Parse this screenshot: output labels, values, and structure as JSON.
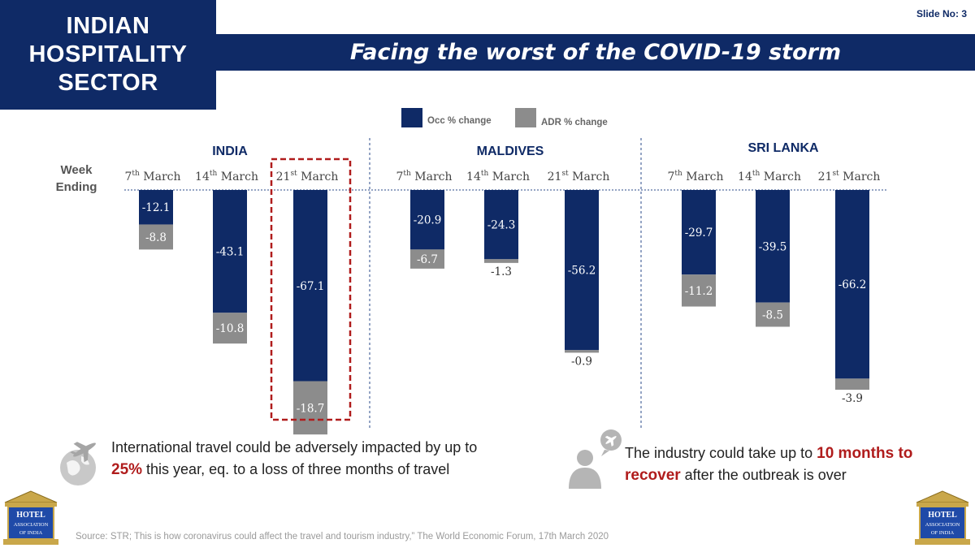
{
  "header": {
    "sector_title": "INDIAN\nHOSPITALITY\nSECTOR",
    "slide_number": "Slide No: 3",
    "main_title": "Facing the worst of the COVID-19 storm"
  },
  "colors": {
    "navy": "#0f2a66",
    "gray": "#8c8c8c",
    "highlight_red": "#b01c1c"
  },
  "chart_data": {
    "type": "bar",
    "stacked": true,
    "orientation": "downward",
    "row_label": "Week Ending",
    "legend": {
      "placement": "top-center",
      "items": [
        {
          "name": "Occ % change",
          "color": "#0f2a66"
        },
        {
          "name": "ADR % change",
          "color": "#8c8c8c"
        }
      ]
    },
    "highlight": {
      "group": "INDIA",
      "week": "21st March"
    },
    "groups": [
      {
        "name": "INDIA",
        "weeks": [
          {
            "day": "7",
            "sup": "th",
            "month": "March",
            "occ": -12.1,
            "adr": -8.8
          },
          {
            "day": "14",
            "sup": "th",
            "month": "March",
            "occ": -43.1,
            "adr": -10.8
          },
          {
            "day": "21",
            "sup": "st",
            "month": "March",
            "occ": -67.1,
            "adr": -18.7
          }
        ]
      },
      {
        "name": "MALDIVES",
        "weeks": [
          {
            "day": "7",
            "sup": "th",
            "month": "March",
            "occ": -20.9,
            "adr": -6.7
          },
          {
            "day": "14",
            "sup": "th",
            "month": "March",
            "occ": -24.3,
            "adr": -1.3
          },
          {
            "day": "21",
            "sup": "st",
            "month": "March",
            "occ": -56.2,
            "adr": -0.9
          }
        ]
      },
      {
        "name": "SRI LANKA",
        "weeks": [
          {
            "day": "7",
            "sup": "th",
            "month": "March",
            "occ": -29.7,
            "adr": -11.2
          },
          {
            "day": "14",
            "sup": "th",
            "month": "March",
            "occ": -39.5,
            "adr": -8.5
          },
          {
            "day": "21",
            "sup": "st",
            "month": "March",
            "occ": -66.2,
            "adr": -3.9
          }
        ]
      }
    ]
  },
  "notes": {
    "left": {
      "icon": "airplane-globe-icon",
      "pre": "International travel could be adversely impacted by up to ",
      "highlight": "25%",
      "post": " this year, eq. to a loss of three months of travel"
    },
    "right": {
      "icon": "person-airplane-icon",
      "pre": "The industry could take up to ",
      "highlight": "10 months to recover",
      "post": " after the outbreak is over"
    }
  },
  "source": "Source: STR; This is how coronavirus could affect the travel and tourism industry,” The World Economic Forum, 17th March 2020",
  "logos": {
    "line1": "HOTEL",
    "line2": "ASSOCIATION",
    "line3": "OF INDIA"
  }
}
